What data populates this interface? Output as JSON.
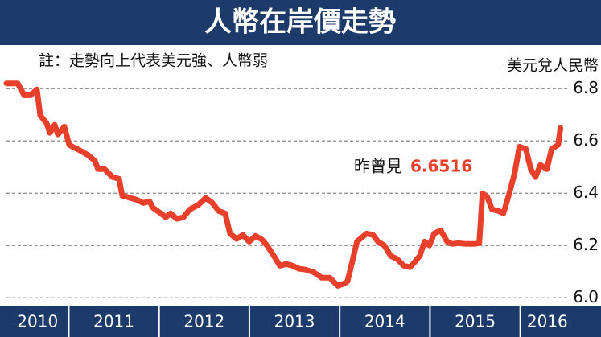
{
  "chart_data": {
    "type": "line",
    "title": "人幣在岸價走勢",
    "note": "註：走勢向上代表美元強、人幣弱",
    "y_axis_label": "美元兌人民幣",
    "annotation": {
      "text": "昨曾見",
      "value": 6.6516
    },
    "x": [
      2010.31,
      2010.435,
      2010.506,
      2010.577,
      2010.648,
      2010.684,
      2010.755,
      2010.791,
      2010.844,
      2010.88,
      2010.951,
      2011.005,
      2011.058,
      2011.129,
      2011.218,
      2011.29,
      2011.325,
      2011.396,
      2011.485,
      2011.557,
      2011.592,
      2011.681,
      2011.753,
      2011.824,
      2011.895,
      2011.931,
      2012.02,
      2012.073,
      2012.127,
      2012.198,
      2012.269,
      2012.34,
      2012.429,
      2012.518,
      2012.59,
      2012.661,
      2012.732,
      2012.786,
      2012.857,
      2012.928,
      2012.999,
      2013.07,
      2013.142,
      2013.195,
      2013.266,
      2013.338,
      2013.409,
      2013.48,
      2013.551,
      2013.623,
      2013.712,
      2013.801,
      2013.89,
      2013.979,
      2014.05,
      2014.086,
      2014.139,
      2014.192,
      2014.246,
      2014.299,
      2014.371,
      2014.424,
      2014.495,
      2014.566,
      2014.638,
      2014.709,
      2014.78,
      2014.834,
      2014.887,
      2014.94,
      2014.994,
      2015.047,
      2015.119,
      2015.19,
      2015.243,
      2015.314,
      2015.404,
      2015.493,
      2015.546,
      2015.582,
      2015.635,
      2015.688,
      2015.76,
      2015.813,
      2015.867,
      2015.938,
      2015.991,
      2016.062,
      2016.116,
      2016.169,
      2016.223,
      2016.294,
      2016.347,
      2016.419,
      2016.445
    ],
    "series": [
      {
        "name": "美元兌人民幣",
        "color": "#e8402a",
        "values": [
          6.82,
          6.82,
          6.775,
          6.775,
          6.797,
          6.698,
          6.668,
          6.631,
          6.662,
          6.625,
          6.655,
          6.585,
          6.575,
          6.563,
          6.545,
          6.523,
          6.492,
          6.492,
          6.462,
          6.455,
          6.391,
          6.382,
          6.375,
          6.363,
          6.369,
          6.345,
          6.323,
          6.308,
          6.323,
          6.302,
          6.308,
          6.338,
          6.354,
          6.382,
          6.363,
          6.332,
          6.323,
          6.246,
          6.225,
          6.24,
          6.215,
          6.237,
          6.222,
          6.2,
          6.163,
          6.123,
          6.129,
          6.123,
          6.111,
          6.108,
          6.098,
          6.077,
          6.077,
          6.046,
          6.055,
          6.062,
          6.138,
          6.215,
          6.231,
          6.246,
          6.24,
          6.215,
          6.2,
          6.16,
          6.148,
          6.123,
          6.117,
          6.138,
          6.16,
          6.215,
          6.2,
          6.246,
          6.258,
          6.215,
          6.206,
          6.209,
          6.206,
          6.206,
          6.209,
          6.4,
          6.385,
          6.338,
          6.332,
          6.323,
          6.385,
          6.477,
          6.578,
          6.569,
          6.492,
          6.462,
          6.508,
          6.492,
          6.569,
          6.585,
          6.65
        ]
      }
    ],
    "xlim": [
      2010.31,
      2016.6
    ],
    "xticks": [
      {
        "value": 2010,
        "label": "2010"
      },
      {
        "value": 2011,
        "label": "2011"
      },
      {
        "value": 2012,
        "label": "2012"
      },
      {
        "value": 2013,
        "label": "2013"
      },
      {
        "value": 2014,
        "label": "2014"
      },
      {
        "value": 2015,
        "label": "2015"
      },
      {
        "value": 2016,
        "label": "2016"
      }
    ],
    "ylim": [
      5.97,
      6.85
    ],
    "yticks": [
      {
        "value": 6,
        "label": "6.0"
      },
      6.2,
      6.4,
      6.6,
      6.8
    ],
    "grid": true
  }
}
